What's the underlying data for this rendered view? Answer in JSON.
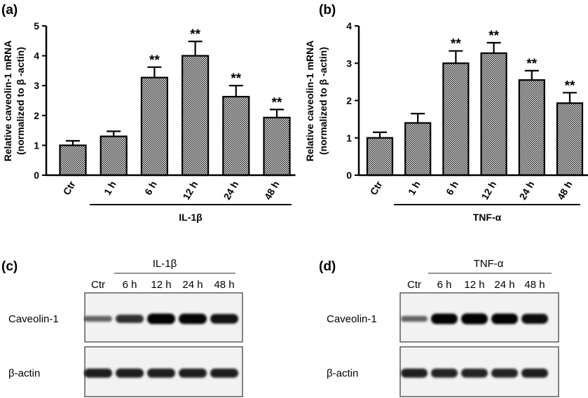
{
  "chart_data": [
    {
      "panel": "(a)",
      "type": "bar",
      "ylabel_line1": "Relative caveolin-1  mRNA",
      "ylabel_line2": "(normalized to β -actin)",
      "categories": [
        "Ctr",
        "1 h",
        "6 h",
        "12 h",
        "24 h",
        "48 h"
      ],
      "values": [
        1.0,
        1.3,
        3.27,
        4.0,
        2.63,
        1.93
      ],
      "errors": [
        0.15,
        0.17,
        0.35,
        0.48,
        0.37,
        0.27
      ],
      "significance": [
        "",
        "",
        "**",
        "**",
        "**",
        "**"
      ],
      "ylim": [
        0,
        5
      ],
      "yticks": [
        "0",
        "1",
        "2",
        "3",
        "4",
        "5"
      ],
      "treatment": "IL-1β"
    },
    {
      "panel": "(b)",
      "type": "bar",
      "ylabel_line1": "Relative caveolin-1  mRNA",
      "ylabel_line2": "(normalized to β -actin)",
      "categories": [
        "Ctr",
        "1 h",
        "6 h",
        "12 h",
        "24 h",
        "48 h"
      ],
      "values": [
        1.0,
        1.4,
        3.0,
        3.27,
        2.55,
        1.93
      ],
      "errors": [
        0.15,
        0.25,
        0.33,
        0.28,
        0.25,
        0.28
      ],
      "significance": [
        "",
        "",
        "**",
        "**",
        "**",
        "**"
      ],
      "ylim": [
        0,
        4
      ],
      "yticks": [
        "0",
        "1",
        "2",
        "3",
        "4"
      ],
      "treatment": "TNF-α"
    }
  ],
  "blots": [
    {
      "panel": "(c)",
      "treatment": "IL-1β",
      "lanes": [
        "Ctr",
        "6 h",
        "12 h",
        "24 h",
        "48 h"
      ],
      "rows": [
        {
          "label": "Caveolin-1",
          "intensity": [
            0.35,
            0.65,
            0.92,
            0.9,
            0.82
          ]
        },
        {
          "label": "β-actin",
          "intensity": [
            0.75,
            0.75,
            0.75,
            0.75,
            0.75
          ]
        }
      ]
    },
    {
      "panel": "(d)",
      "treatment": "TNF-α",
      "lanes": [
        "Ctr",
        "6 h",
        "12 h",
        "24 h",
        "48 h"
      ],
      "rows": [
        {
          "label": "Caveolin-1",
          "intensity": [
            0.35,
            0.92,
            0.95,
            0.92,
            0.85
          ]
        },
        {
          "label": "β-actin",
          "intensity": [
            0.75,
            0.72,
            0.72,
            0.72,
            0.75
          ]
        }
      ]
    }
  ]
}
